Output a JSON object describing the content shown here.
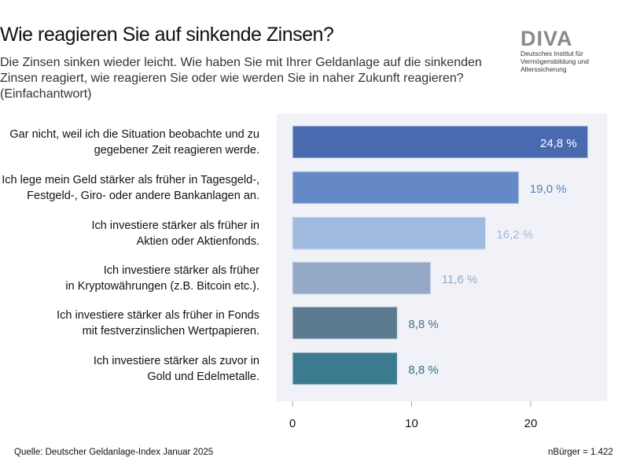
{
  "title": "Wie reagieren Sie auf sinkende Zinsen?",
  "subtitle": "Die Zinsen sinken wieder leicht. Wie haben Sie mit Ihrer Geldanlage auf die sinkenden Zinsen reagiert, wie reagieren Sie oder wie werden Sie in naher Zukunft reagieren? (Einfachantwort)",
  "logo": {
    "name": "DIVA",
    "line1": "Deutsches Institut für",
    "line2": "Vermögensbildung und Alterssicherung"
  },
  "source": "Quelle: Deutscher Geldanlage-Index Januar 2025",
  "sample": "nBürger = 1.422",
  "chart_data": {
    "type": "bar",
    "orientation": "horizontal",
    "categories": [
      "Gar nicht, weil ich die Situation beobachte und zu gegebener Zeit reagieren werde.",
      "Ich lege mein Geld stärker als früher in Tagesgeld-, Festgeld-, Giro- oder andere Bankanlagen an.",
      "Ich investiere stärker als früher in Aktien oder Aktienfonds.",
      "Ich investiere stärker als früher in Kryptowährungen (z.B. Bitcoin etc.).",
      "Ich investiere stärker als früher in Fonds mit festverzinslichen Wertpapieren.",
      "Ich investiere stärker als zuvor in Gold und Edelmetalle."
    ],
    "category_lines": [
      [
        "Gar nicht, weil ich die Situation beobachte und zu",
        "gegebener Zeit reagieren werde."
      ],
      [
        "Ich lege mein Geld stärker als früher in Tagesgeld-,",
        "Festgeld-, Giro- oder andere Bankanlagen an."
      ],
      [
        "Ich investiere stärker als früher in",
        "Aktien oder Aktienfonds."
      ],
      [
        "Ich investiere stärker als früher",
        "in Kryptowährungen (z.B. Bitcoin etc.)."
      ],
      [
        "Ich investiere stärker als früher in Fonds",
        "mit festverzinslichen Wertpapieren."
      ],
      [
        "Ich investiere stärker als zuvor in",
        "Gold und Edelmetalle."
      ]
    ],
    "values": [
      24.8,
      19.0,
      16.2,
      11.6,
      8.8,
      8.8
    ],
    "data_labels": [
      "24,8 %",
      "19,0 %",
      "16,2 %",
      "11,6 %",
      "8,8 %",
      "8,8 %"
    ],
    "bar_colors": [
      "#4a6ab0",
      "#6589c7",
      "#a1bae0",
      "#94a9c5",
      "#5b7a8f",
      "#3b7a8f"
    ],
    "label_colors": [
      "#ffffff",
      "#5a7cc0",
      "#a1bae0",
      "#94a9c5",
      "#4d6e83",
      "#2f6f84"
    ],
    "xticks": [
      "0",
      "10",
      "20"
    ],
    "xlim": [
      0,
      26
    ],
    "background": "#f0f2f8",
    "grid": false
  }
}
